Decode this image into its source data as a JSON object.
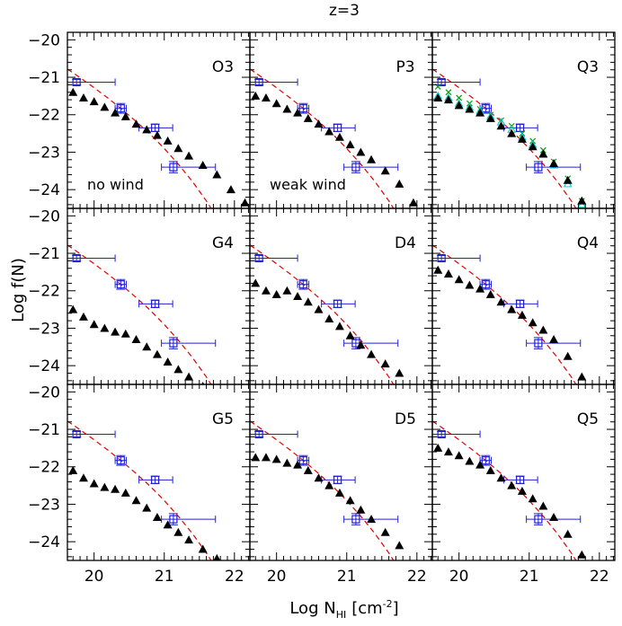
{
  "figure": {
    "title": "z=3",
    "xlabel_main": "Log N",
    "xlabel_sub": "HI",
    "xlabel_unit": "[cm",
    "xlabel_exp": "-2",
    "xlabel_close": "]",
    "ylabel": "Log f(N)"
  },
  "colors": {
    "sim": "#000000",
    "obs": "#2020d0",
    "fit": "#e00000",
    "alt_cross": "#00a000",
    "alt_tri": "#00d0d0"
  },
  "chart_data": {
    "type": "scatter",
    "grid": false,
    "x_ticks": [
      "20",
      "21",
      "22"
    ],
    "y_ticks": [
      "-20",
      "-21",
      "-22",
      "-23",
      "-24"
    ],
    "xlim": [
      19.62,
      22.22
    ],
    "ylim": [
      -24.5,
      -19.8
    ],
    "observations": [
      {
        "x": 19.75,
        "y": -21.13,
        "xerr": [
          0.25,
          0.55
        ],
        "yerr": 0.07
      },
      {
        "x": 20.38,
        "y": -21.83,
        "xerr": [
          0.08,
          0.08
        ],
        "yerr": 0.13
      },
      {
        "x": 20.87,
        "y": -22.35,
        "xerr": [
          0.23,
          0.25
        ],
        "yerr": 0.1
      },
      {
        "x": 21.13,
        "y": -23.4,
        "xerr": [
          0.17,
          0.6
        ],
        "yerr": 0.15
      }
    ],
    "fit_curve": {
      "x": [
        19.62,
        19.8,
        20.0,
        20.2,
        20.4,
        20.6,
        20.8,
        21.0,
        21.2,
        21.4,
        21.6,
        21.7,
        21.8
      ],
      "y": [
        -20.78,
        -21.01,
        -21.28,
        -21.56,
        -21.86,
        -22.18,
        -22.52,
        -22.9,
        -23.32,
        -23.78,
        -24.3,
        -24.6,
        -24.9
      ]
    },
    "panels": [
      {
        "label": "O3",
        "annotation": "no wind",
        "x": [
          19.7,
          19.85,
          20.0,
          20.15,
          20.3,
          20.45,
          20.6,
          20.75,
          20.9,
          21.05,
          21.2,
          21.35,
          21.55,
          21.75,
          21.95,
          22.15
        ],
        "y": [
          -21.4,
          -21.55,
          -21.65,
          -21.8,
          -21.95,
          -22.05,
          -22.25,
          -22.4,
          -22.55,
          -22.7,
          -22.9,
          -23.1,
          -23.35,
          -23.6,
          -24.0,
          -24.35
        ]
      },
      {
        "label": "P3",
        "annotation": "weak wind",
        "x": [
          19.7,
          19.85,
          20.0,
          20.15,
          20.3,
          20.45,
          20.6,
          20.75,
          20.9,
          21.05,
          21.2,
          21.35,
          21.55,
          21.75,
          21.95
        ],
        "y": [
          -21.5,
          -21.55,
          -21.7,
          -21.85,
          -21.95,
          -22.1,
          -22.25,
          -22.45,
          -22.6,
          -22.8,
          -23.0,
          -23.2,
          -23.5,
          -23.85,
          -24.35
        ]
      },
      {
        "label": "Q3",
        "annotation": "",
        "x": [
          19.7,
          19.85,
          20.0,
          20.15,
          20.3,
          20.45,
          20.6,
          20.75,
          20.9,
          21.05,
          21.2,
          21.35,
          21.55,
          21.75
        ],
        "y": [
          -21.55,
          -21.6,
          -21.75,
          -21.85,
          -21.95,
          -22.1,
          -22.3,
          -22.5,
          -22.65,
          -22.85,
          -23.05,
          -23.3,
          -23.75,
          -24.3
        ],
        "cross": {
          "x": [
            19.7,
            19.85,
            20.0,
            20.15,
            20.3,
            20.45,
            20.6,
            20.75,
            20.9,
            21.05,
            21.2,
            21.35,
            21.55,
            21.75
          ],
          "y": [
            -21.25,
            -21.4,
            -21.55,
            -21.7,
            -21.85,
            -22.0,
            -22.15,
            -22.3,
            -22.5,
            -22.7,
            -22.95,
            -23.25,
            -23.7,
            -24.3
          ]
        },
        "tri": {
          "x": [
            19.7,
            19.85,
            20.0,
            20.15,
            20.3,
            20.45,
            20.6,
            20.75,
            20.9,
            21.05,
            21.2,
            21.35,
            21.55,
            21.75
          ],
          "y": [
            -21.5,
            -21.55,
            -21.7,
            -21.8,
            -21.9,
            -22.05,
            -22.2,
            -22.4,
            -22.6,
            -22.8,
            -23.05,
            -23.35,
            -23.85,
            -24.4
          ]
        }
      },
      {
        "label": "G4",
        "annotation": "",
        "x": [
          19.7,
          19.85,
          20.0,
          20.15,
          20.3,
          20.45,
          20.6,
          20.75,
          20.9,
          21.05,
          21.2,
          21.35,
          21.55
        ],
        "y": [
          -22.5,
          -22.7,
          -22.9,
          -23.0,
          -23.1,
          -23.15,
          -23.3,
          -23.5,
          -23.7,
          -23.9,
          -24.1,
          -24.3,
          -24.55
        ]
      },
      {
        "label": "D4",
        "annotation": "",
        "x": [
          19.7,
          19.85,
          20.0,
          20.15,
          20.3,
          20.45,
          20.6,
          20.75,
          20.9,
          21.05,
          21.2,
          21.35,
          21.55,
          21.75
        ],
        "y": [
          -21.8,
          -22.0,
          -22.1,
          -22.0,
          -22.15,
          -22.3,
          -22.5,
          -22.75,
          -22.95,
          -23.2,
          -23.45,
          -23.7,
          -23.95,
          -24.2
        ]
      },
      {
        "label": "Q4",
        "annotation": "",
        "x": [
          19.7,
          19.85,
          20.0,
          20.15,
          20.3,
          20.45,
          20.6,
          20.75,
          20.9,
          21.05,
          21.2,
          21.35,
          21.55,
          21.75
        ],
        "y": [
          -21.45,
          -21.55,
          -21.7,
          -21.85,
          -21.95,
          -22.1,
          -22.3,
          -22.5,
          -22.65,
          -22.85,
          -23.05,
          -23.3,
          -23.75,
          -24.3
        ]
      },
      {
        "label": "G5",
        "annotation": "",
        "x": [
          19.7,
          19.85,
          20.0,
          20.15,
          20.3,
          20.45,
          20.6,
          20.75,
          20.9,
          21.05,
          21.2,
          21.35,
          21.55,
          21.75
        ],
        "y": [
          -22.1,
          -22.3,
          -22.45,
          -22.55,
          -22.6,
          -22.7,
          -22.9,
          -23.1,
          -23.35,
          -23.55,
          -23.75,
          -23.95,
          -24.2,
          -24.45
        ]
      },
      {
        "label": "D5",
        "annotation": "",
        "x": [
          19.7,
          19.85,
          20.0,
          20.15,
          20.3,
          20.45,
          20.6,
          20.75,
          20.9,
          21.05,
          21.2,
          21.35,
          21.55,
          21.75
        ],
        "y": [
          -21.75,
          -21.75,
          -21.8,
          -21.9,
          -21.95,
          -22.1,
          -22.3,
          -22.5,
          -22.7,
          -22.9,
          -23.15,
          -23.4,
          -23.75,
          -24.1
        ]
      },
      {
        "label": "Q5",
        "annotation": "",
        "x": [
          19.7,
          19.85,
          20.0,
          20.15,
          20.3,
          20.45,
          20.6,
          20.75,
          20.9,
          21.05,
          21.2,
          21.35,
          21.55,
          21.75
        ],
        "y": [
          -21.5,
          -21.6,
          -21.7,
          -21.85,
          -21.95,
          -22.1,
          -22.3,
          -22.5,
          -22.65,
          -22.85,
          -23.05,
          -23.35,
          -23.8,
          -24.35
        ]
      }
    ]
  }
}
